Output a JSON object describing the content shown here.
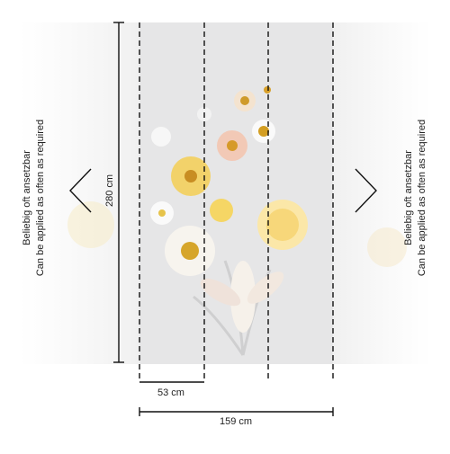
{
  "left_note": {
    "line1": "Beliebig oft ansetzbar",
    "line2": "Can be applied as often as required"
  },
  "right_note": {
    "line1": "Beliebig oft ansetzbar",
    "line2": "Can be applied as often as required"
  },
  "dimensions": {
    "height": "280 cm",
    "panel_width": "53 cm",
    "total_width": "159 cm"
  }
}
